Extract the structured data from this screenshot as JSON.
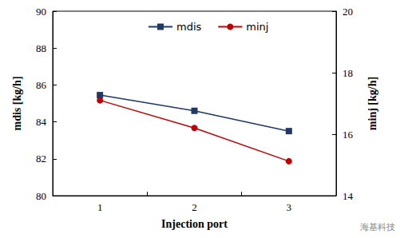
{
  "chart_data": {
    "type": "line",
    "x_label": "Injection port",
    "y_label": "mdis [kg/h]",
    "y2_label": "minj [kg/h]",
    "categories": [
      "1",
      "2",
      "3"
    ],
    "series": [
      {
        "name": "mdis",
        "color": "#1f3864",
        "marker": "square",
        "values": [
          85.45,
          84.6,
          83.5
        ]
      },
      {
        "name": "minj",
        "color": "#c00000",
        "marker": "circle",
        "axis": "y2",
        "values": [
          17.1,
          16.2,
          15.12
        ]
      }
    ],
    "ylim": [
      80,
      90
    ],
    "yticks": [
      80,
      82,
      84,
      86,
      88,
      90
    ],
    "y2lim": [
      14,
      20
    ],
    "y2ticks": [
      14,
      16,
      18,
      20
    ],
    "legend": "top",
    "annotations": [
      "海基科技"
    ]
  }
}
